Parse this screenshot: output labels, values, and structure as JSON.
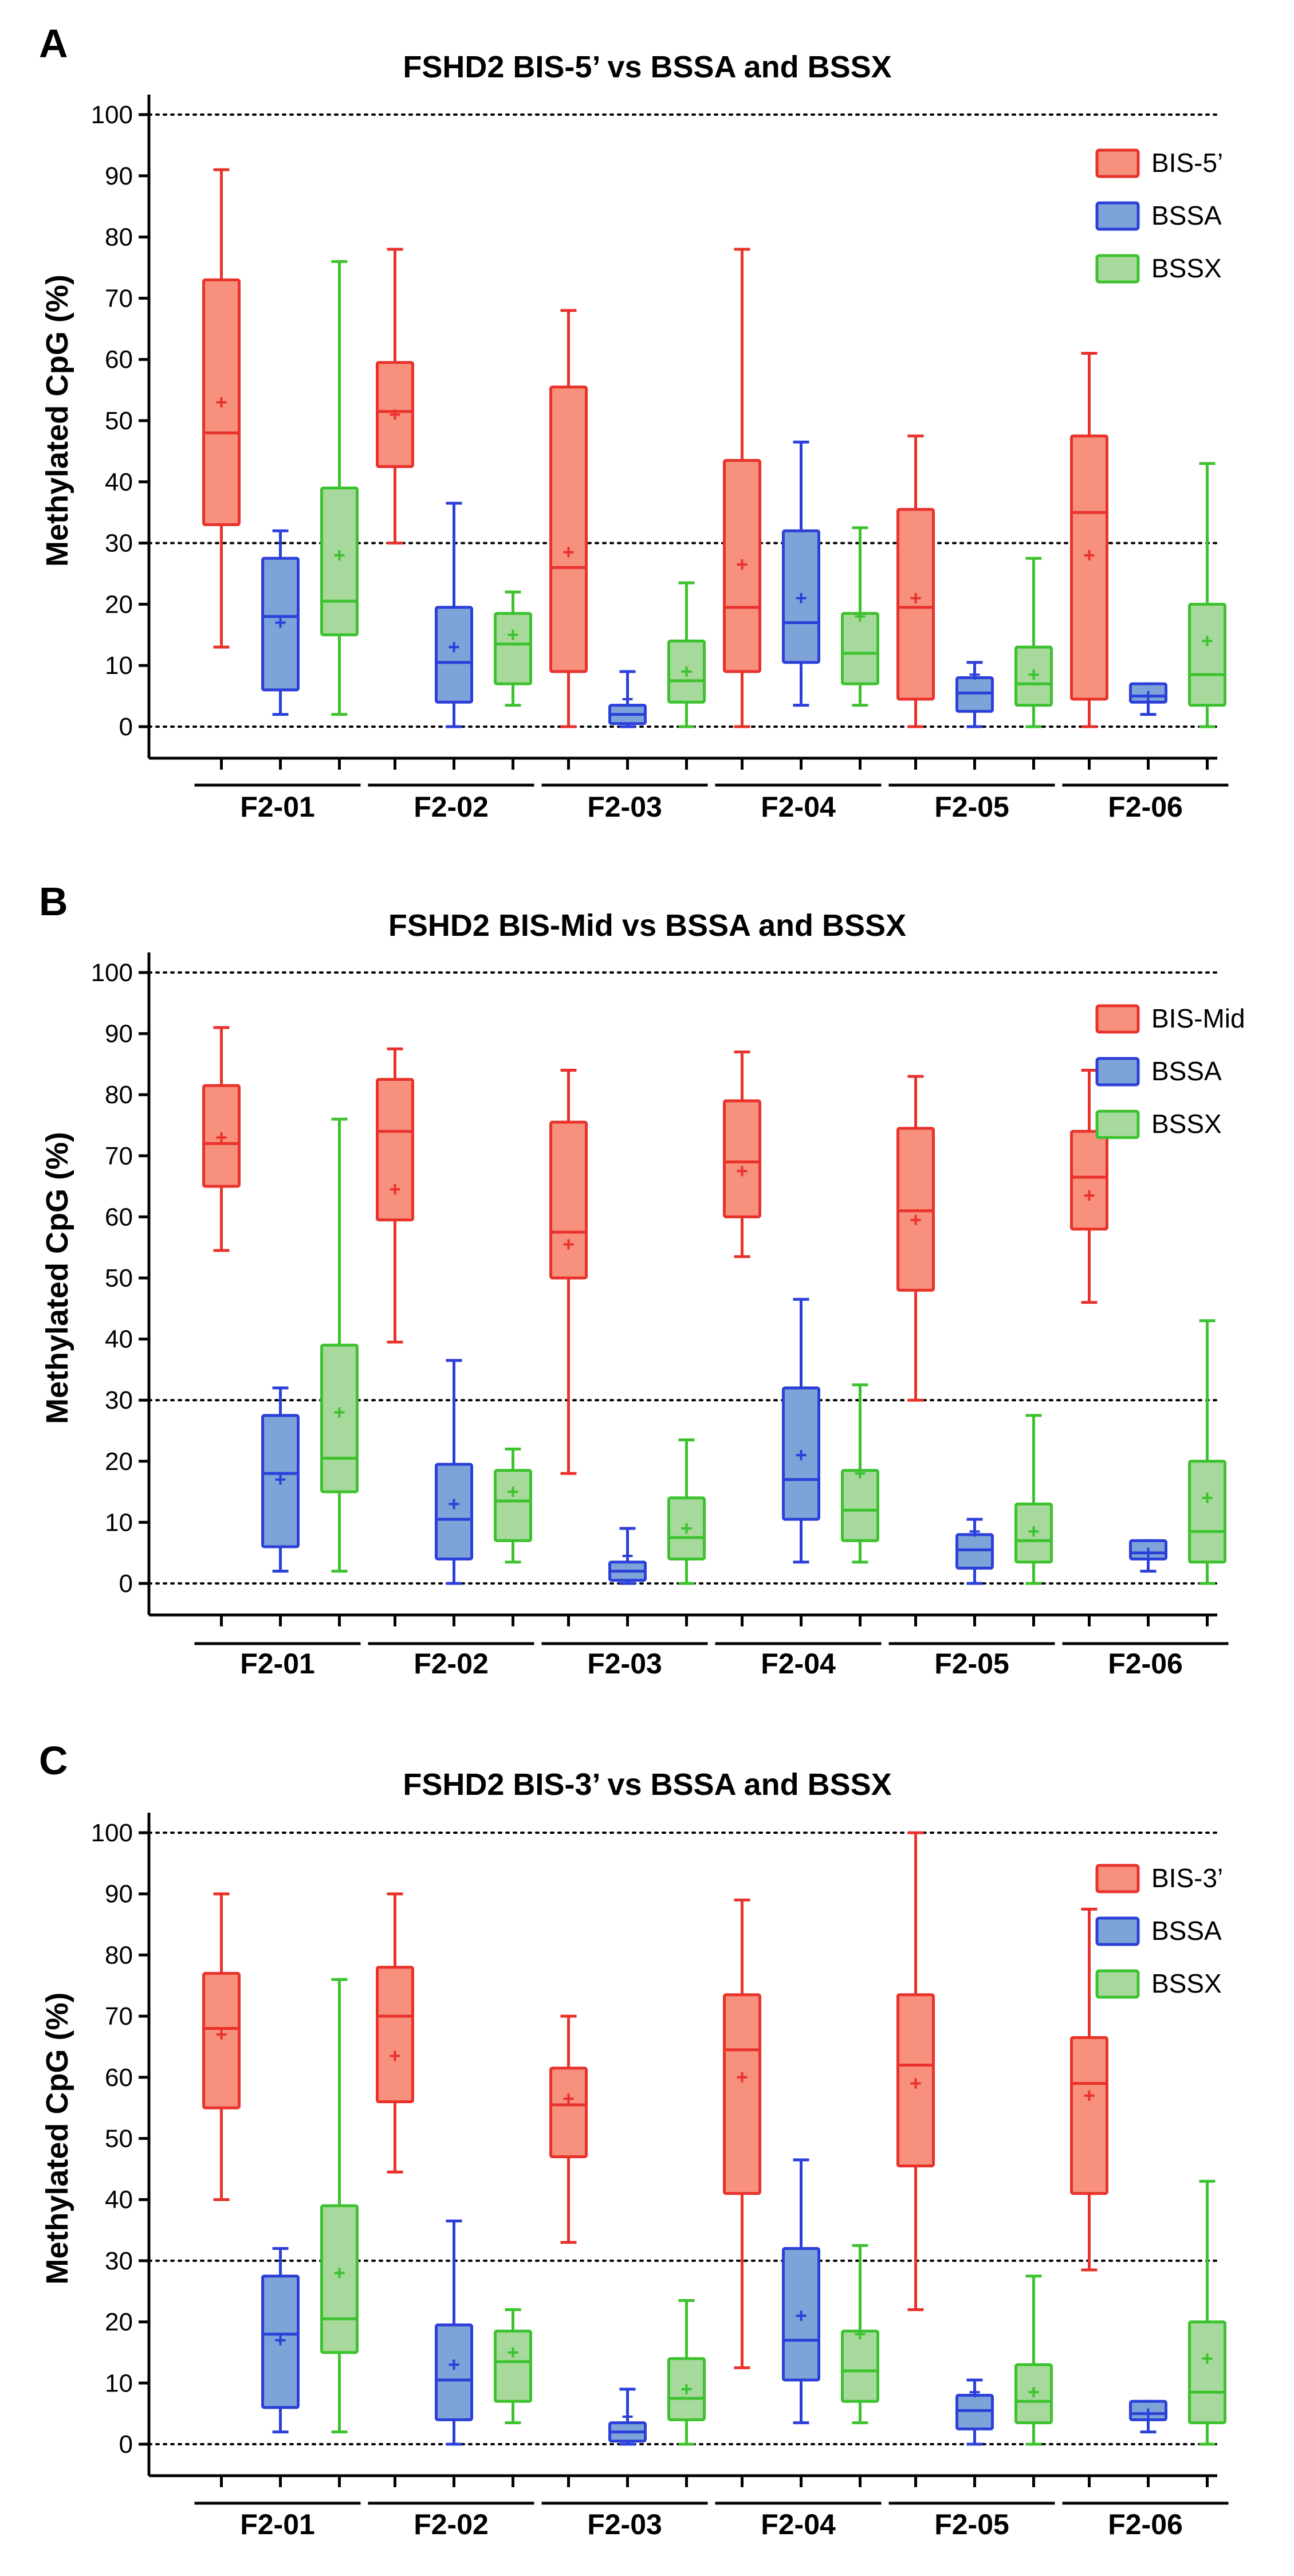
{
  "chart_data": [
    {
      "panel": "A",
      "type": "box",
      "title": "FSHD2 BIS-5’ vs BSSA and BSSX",
      "ylabel": "Methylated CpG (%)",
      "xlabel": "",
      "ylim": [
        0,
        100
      ],
      "yticks": [
        0,
        10,
        20,
        30,
        40,
        50,
        60,
        70,
        80,
        90,
        100
      ],
      "reference_lines": [
        0,
        30,
        100
      ],
      "legend_position": "top-right",
      "categories": [
        "F2-01",
        "F2-02",
        "F2-03",
        "F2-04",
        "F2-05",
        "F2-06"
      ],
      "series": [
        {
          "name": "BIS-5’",
          "stroke": "#e8322b",
          "fill": "#f7907c",
          "boxes": [
            {
              "min": 13,
              "q1": 33,
              "median": 48,
              "q3": 73,
              "max": 91,
              "mean": 53
            },
            {
              "min": 30,
              "q1": 42.5,
              "median": 51.5,
              "q3": 59.5,
              "max": 78,
              "mean": 51
            },
            {
              "min": 0,
              "q1": 9,
              "median": 26,
              "q3": 55.5,
              "max": 68,
              "mean": 28.5
            },
            {
              "min": 0,
              "q1": 9,
              "median": 19.5,
              "q3": 43.5,
              "max": 78,
              "mean": 26.5
            },
            {
              "min": 0,
              "q1": 4.5,
              "median": 19.5,
              "q3": 35.5,
              "max": 47.5,
              "mean": 21
            },
            {
              "min": 0,
              "q1": 4.5,
              "median": 35,
              "q3": 47.5,
              "max": 61,
              "mean": 28
            }
          ]
        },
        {
          "name": "BSSA",
          "stroke": "#2b3fd9",
          "fill": "#7ea3d8",
          "boxes": [
            {
              "min": 2,
              "q1": 6,
              "median": 18,
              "q3": 27.5,
              "max": 32,
              "mean": 17
            },
            {
              "min": 0,
              "q1": 4,
              "median": 10.5,
              "q3": 19.5,
              "max": 36.5,
              "mean": 13
            },
            {
              "min": 0,
              "q1": 0.5,
              "median": 2,
              "q3": 3.5,
              "max": 9,
              "mean": 4.5
            },
            {
              "min": 3.5,
              "q1": 10.5,
              "median": 17,
              "q3": 32,
              "max": 46.5,
              "mean": 21
            },
            {
              "min": 0,
              "q1": 2.5,
              "median": 5.5,
              "q3": 8,
              "max": 10.5,
              "mean": 8.5
            },
            {
              "min": 2,
              "q1": 4,
              "median": 5,
              "q3": 7,
              "max": 7,
              "mean": 5
            }
          ]
        },
        {
          "name": "BSSX",
          "stroke": "#3cc22e",
          "fill": "#a6d99b",
          "boxes": [
            {
              "min": 2,
              "q1": 15,
              "median": 20.5,
              "q3": 39,
              "max": 76,
              "mean": 28
            },
            {
              "min": 3.5,
              "q1": 7,
              "median": 13.5,
              "q3": 18.5,
              "max": 22,
              "mean": 15
            },
            {
              "min": 0,
              "q1": 4,
              "median": 7.5,
              "q3": 14,
              "max": 23.5,
              "mean": 9
            },
            {
              "min": 3.5,
              "q1": 7,
              "median": 12,
              "q3": 18.5,
              "max": 32.5,
              "mean": 18
            },
            {
              "min": 0,
              "q1": 3.5,
              "median": 7,
              "q3": 13,
              "max": 27.5,
              "mean": 8.5
            },
            {
              "min": 0,
              "q1": 3.5,
              "median": 8.5,
              "q3": 20,
              "max": 43,
              "mean": 14
            }
          ]
        }
      ]
    },
    {
      "panel": "B",
      "type": "box",
      "title": "FSHD2 BIS-Mid vs BSSA and BSSX",
      "ylabel": "Methylated CpG (%)",
      "xlabel": "",
      "ylim": [
        0,
        100
      ],
      "yticks": [
        0,
        10,
        20,
        30,
        40,
        50,
        60,
        70,
        80,
        90,
        100
      ],
      "reference_lines": [
        0,
        30,
        100
      ],
      "legend_position": "top-right",
      "categories": [
        "F2-01",
        "F2-02",
        "F2-03",
        "F2-04",
        "F2-05",
        "F2-06"
      ],
      "series": [
        {
          "name": "BIS-Mid",
          "stroke": "#e8322b",
          "fill": "#f7907c",
          "boxes": [
            {
              "min": 54.5,
              "q1": 65,
              "median": 72,
              "q3": 81.5,
              "max": 91,
              "mean": 73
            },
            {
              "min": 39.5,
              "q1": 59.5,
              "median": 74,
              "q3": 82.5,
              "max": 87.5,
              "mean": 64.5
            },
            {
              "min": 18,
              "q1": 50,
              "median": 57.5,
              "q3": 75.5,
              "max": 84,
              "mean": 55.5
            },
            {
              "min": 53.5,
              "q1": 60,
              "median": 69,
              "q3": 79,
              "max": 87,
              "mean": 67.5
            },
            {
              "min": 30,
              "q1": 48,
              "median": 61,
              "q3": 74.5,
              "max": 83,
              "mean": 59.5
            },
            {
              "min": 46,
              "q1": 58,
              "median": 66.5,
              "q3": 74,
              "max": 84,
              "mean": 63.5
            }
          ]
        },
        {
          "name": "BSSA",
          "stroke": "#2b3fd9",
          "fill": "#7ea3d8",
          "boxes": [
            {
              "min": 2,
              "q1": 6,
              "median": 18,
              "q3": 27.5,
              "max": 32,
              "mean": 17
            },
            {
              "min": 0,
              "q1": 4,
              "median": 10.5,
              "q3": 19.5,
              "max": 36.5,
              "mean": 13
            },
            {
              "min": 0,
              "q1": 0.5,
              "median": 2,
              "q3": 3.5,
              "max": 9,
              "mean": 4.5
            },
            {
              "min": 3.5,
              "q1": 10.5,
              "median": 17,
              "q3": 32,
              "max": 46.5,
              "mean": 21
            },
            {
              "min": 0,
              "q1": 2.5,
              "median": 5.5,
              "q3": 8,
              "max": 10.5,
              "mean": 8.5
            },
            {
              "min": 2,
              "q1": 4,
              "median": 5,
              "q3": 7,
              "max": 7,
              "mean": 5
            }
          ]
        },
        {
          "name": "BSSX",
          "stroke": "#3cc22e",
          "fill": "#a6d99b",
          "boxes": [
            {
              "min": 2,
              "q1": 15,
              "median": 20.5,
              "q3": 39,
              "max": 76,
              "mean": 28
            },
            {
              "min": 3.5,
              "q1": 7,
              "median": 13.5,
              "q3": 18.5,
              "max": 22,
              "mean": 15
            },
            {
              "min": 0,
              "q1": 4,
              "median": 7.5,
              "q3": 14,
              "max": 23.5,
              "mean": 9
            },
            {
              "min": 3.5,
              "q1": 7,
              "median": 12,
              "q3": 18.5,
              "max": 32.5,
              "mean": 18
            },
            {
              "min": 0,
              "q1": 3.5,
              "median": 7,
              "q3": 13,
              "max": 27.5,
              "mean": 8.5
            },
            {
              "min": 0,
              "q1": 3.5,
              "median": 8.5,
              "q3": 20,
              "max": 43,
              "mean": 14
            }
          ]
        }
      ]
    },
    {
      "panel": "C",
      "type": "box",
      "title": "FSHD2 BIS-3’ vs BSSA and BSSX",
      "ylabel": "Methylated CpG (%)",
      "xlabel": "",
      "ylim": [
        0,
        100
      ],
      "yticks": [
        0,
        10,
        20,
        30,
        40,
        50,
        60,
        70,
        80,
        90,
        100
      ],
      "reference_lines": [
        0,
        30,
        100
      ],
      "legend_position": "top-right",
      "categories": [
        "F2-01",
        "F2-02",
        "F2-03",
        "F2-04",
        "F2-05",
        "F2-06"
      ],
      "series": [
        {
          "name": "BIS-3’",
          "stroke": "#e8322b",
          "fill": "#f7907c",
          "boxes": [
            {
              "min": 40,
              "q1": 55,
              "median": 68,
              "q3": 77,
              "max": 90,
              "mean": 67
            },
            {
              "min": 44.5,
              "q1": 56,
              "median": 70,
              "q3": 78,
              "max": 90,
              "mean": 63.5
            },
            {
              "min": 33,
              "q1": 47,
              "median": 55.5,
              "q3": 61.5,
              "max": 70,
              "mean": 56.5
            },
            {
              "min": 12.5,
              "q1": 41,
              "median": 64.5,
              "q3": 73.5,
              "max": 89,
              "mean": 60
            },
            {
              "min": 22,
              "q1": 45.5,
              "median": 62,
              "q3": 73.5,
              "max": 100,
              "mean": 59
            },
            {
              "min": 28.5,
              "q1": 41,
              "median": 59,
              "q3": 66.5,
              "max": 87.5,
              "mean": 57
            }
          ]
        },
        {
          "name": "BSSA",
          "stroke": "#2b3fd9",
          "fill": "#7ea3d8",
          "boxes": [
            {
              "min": 2,
              "q1": 6,
              "median": 18,
              "q3": 27.5,
              "max": 32,
              "mean": 17
            },
            {
              "min": 0,
              "q1": 4,
              "median": 10.5,
              "q3": 19.5,
              "max": 36.5,
              "mean": 13
            },
            {
              "min": 0,
              "q1": 0.5,
              "median": 2,
              "q3": 3.5,
              "max": 9,
              "mean": 4.5
            },
            {
              "min": 3.5,
              "q1": 10.5,
              "median": 17,
              "q3": 32,
              "max": 46.5,
              "mean": 21
            },
            {
              "min": 0,
              "q1": 2.5,
              "median": 5.5,
              "q3": 8,
              "max": 10.5,
              "mean": 8.5
            },
            {
              "min": 2,
              "q1": 4,
              "median": 5,
              "q3": 7,
              "max": 7,
              "mean": 5
            }
          ]
        },
        {
          "name": "BSSX",
          "stroke": "#3cc22e",
          "fill": "#a6d99b",
          "boxes": [
            {
              "min": 2,
              "q1": 15,
              "median": 20.5,
              "q3": 39,
              "max": 76,
              "mean": 28
            },
            {
              "min": 3.5,
              "q1": 7,
              "median": 13.5,
              "q3": 18.5,
              "max": 22,
              "mean": 15
            },
            {
              "min": 0,
              "q1": 4,
              "median": 7.5,
              "q3": 14,
              "max": 23.5,
              "mean": 9
            },
            {
              "min": 3.5,
              "q1": 7,
              "median": 12,
              "q3": 18.5,
              "max": 32.5,
              "mean": 18
            },
            {
              "min": 0,
              "q1": 3.5,
              "median": 7,
              "q3": 13,
              "max": 27.5,
              "mean": 8.5
            },
            {
              "min": 0,
              "q1": 3.5,
              "median": 8.5,
              "q3": 20,
              "max": 43,
              "mean": 14
            }
          ]
        }
      ]
    }
  ]
}
